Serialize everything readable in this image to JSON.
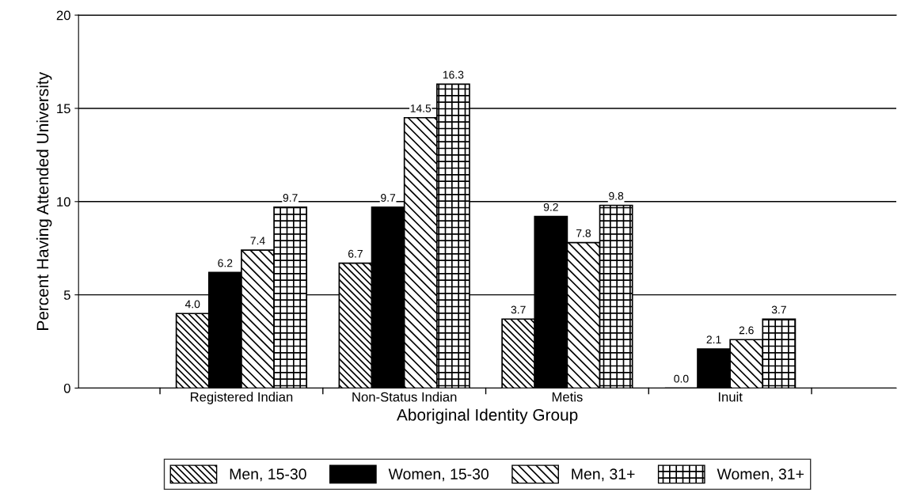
{
  "chart_data": {
    "type": "bar",
    "xlabel": "Aboriginal Identity Group",
    "ylabel": "Percent Having Attended University",
    "categories": [
      "Registered Indian",
      "Non-Status Indian",
      "Metis",
      "Inuit"
    ],
    "series": [
      {
        "name": "Men, 15-30",
        "color": "#000000",
        "values": [
          4.0,
          6.7,
          3.7,
          0.0
        ],
        "value_labels": [
          "4.0",
          "6.7",
          "3.7",
          "0.0"
        ]
      },
      {
        "name": "Women, 15-30",
        "color": "#000000",
        "values": [
          6.2,
          9.7,
          9.2,
          2.1
        ],
        "value_labels": [
          "6.2",
          "9.7",
          "9.2",
          "2.1"
        ]
      },
      {
        "name": "Men, 31+",
        "color": "#000000",
        "values": [
          7.4,
          14.5,
          7.8,
          2.6
        ],
        "value_labels": [
          "7.4",
          "14.5",
          "7.8",
          "2.6"
        ]
      },
      {
        "name": "Women, 31+",
        "color": "#000000",
        "values": [
          9.7,
          16.3,
          9.8,
          3.7
        ],
        "value_labels": [
          "9.7",
          "16.3",
          "9.8",
          "3.7"
        ]
      }
    ],
    "ylim": [
      0,
      20
    ],
    "yticks": [
      0,
      5,
      10,
      15,
      20
    ],
    "grid": "y",
    "legend": "bottom"
  }
}
